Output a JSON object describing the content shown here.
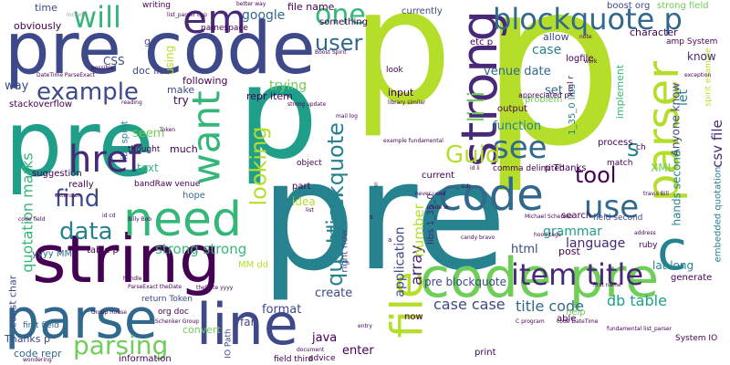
{
  "words": {
    "p_big": "p",
    "p_mid": "p",
    "pre_big": "pre",
    "pre_code_top": "pre code",
    "pre_left": "pre",
    "code_pre": "code pre",
    "string": "string",
    "parse": "parse",
    "line": "line",
    "need": "need",
    "code": "code",
    "strong_v": "strong",
    "parser_v": "parser",
    "file_v": "file",
    "item_title": "item title",
    "blockquote_p": "blockquote p",
    "em": "em",
    "want_v": "want",
    "href": "href",
    "example": "example",
    "will": "will",
    "one": "one",
    "user": "user",
    "see": "see",
    "use": "use",
    "c": "c",
    "guid": "Guid",
    "tool": "tool",
    "s": "s",
    "find": "find",
    "data": "data",
    "parsing": "parsing",
    "question_v": "question",
    "p_blockquote_v": "p blockquote",
    "looking_v": "looking",
    "li_li_v": "li li",
    "strong_strong": "strong strong",
    "google": "google",
    "quotation_marks_v": "quotation marks",
    "grammar": "grammar",
    "language": "language",
    "db_table": "db table",
    "title_code": "title code",
    "case_case": "case case",
    "pre_blockquote": "pre blockquote",
    "html": "html",
    "lat_long": "lat long",
    "array_v": "array",
    "application_v": "application",
    "number_v": "number",
    "xml": "XML",
    "set": "set",
    "venue_date": "venue date",
    "function": "function",
    "know": "know",
    "csv_file_v": "csv file",
    "let_v": "let",
    "case": "case",
    "way": "way",
    "stackoverflow": "stackoverflow",
    "seem": "seem",
    "text": "text",
    "suggestion": "suggestion",
    "really": "really",
    "yyyy_mm": "yyyy MM",
    "bandraw_venue": "bandRaw venue",
    "hope": "hope",
    "table_p": "table p",
    "far": "far",
    "format": "format",
    "create": "create",
    "java": "java",
    "enter": "enter",
    "thanks_p": "Thanks p",
    "code_repr": "code repr",
    "information": "information",
    "convert": "convert",
    "return_token": "return Token",
    "org_doc": "org doc",
    "first_field": "first field",
    "thought": "thought",
    "much": "much",
    "try": "try",
    "make": "make",
    "following": "following",
    "doc_libs": "doc libs",
    "css": "CSS",
    "go": "go",
    "obviously": "obviously",
    "time": "time",
    "file_name": "file name",
    "currently": "currently",
    "something": "something",
    "etc_p": "etc p",
    "allow": "allow",
    "character": "character",
    "amp_system": "amp System",
    "boost_org": "boost org",
    "strong_field": "strong field",
    "trying": "trying",
    "repr_item": "repr item",
    "input": "input",
    "output": "output",
    "problem": "problem",
    "look": "look",
    "idea": "idea",
    "part": "part",
    "current": "current",
    "search": "search",
    "post": "post",
    "now": "now",
    "print": "print",
    "able": "able",
    "help": "help",
    "generate": "generate",
    "process": "process",
    "match": "match",
    "field_second": "field second",
    "p_thanks": "p Thanks",
    "ruby": "ruby",
    "system_io": "System IO",
    "anyone_know_v": "Anyone know",
    "hands_second_v": "hands second",
    "embedded_quotation_v": "embedded quotation",
    "implement_v": "implement",
    "logfile": "logfile",
    "const_char_v": "const char",
    "mm_dd": "MM dd",
    "right_now_v": "right now",
    "libs_1_35_0_v": "libs 1_35_0",
    "libs_spirit_v": "libs spirit",
    "using_v": "using",
    "comma_delimited": "comma delimited",
    "appreciated_p": "appreciated p",
    "libs_1_35_0_b_v": "1_35_0 libs",
    "namespace": "namespace",
    "writing": "writing",
    "field_third": "field third",
    "advice": "advice",
    "io_path_v": "IO Path",
    "object": "object",
    "ch": "ch",
    "xmlr_v": "xml r",
    "spirit_example_v": "spirit example",
    "include": "include",
    "list_parser_cpp": "list_parser cpp",
    "datetime_parseexact": "DateTime ParseExact",
    "group_house": "Group House",
    "thedate_yyyy": "theDate yyyy",
    "parseexact_thedate": "ParseExact theDate",
    "wondering": "wondering",
    "schenker_group": "Schenker Group",
    "michael_schenker": "Michael Schenker",
    "never_used": "never used",
    "example_fundamental": "example fundamental",
    "library_similar": "library similar",
    "code_field": "code field",
    "extension": "extension",
    "possible": "possible",
    "handle": "handle",
    "document": "document",
    "entry": "entry",
    "reading": "reading",
    "billy_bob": "Billy Bob",
    "token": "Token",
    "strong_update": "strong update",
    "mail_log": "mail log",
    "address": "address",
    "code_datetime": "code DateTime",
    "fundamental_list_parser": "fundamental list_parser",
    "c_program": "C program",
    "candy_bravo": "candy bravo",
    "first_name": "first name",
    "better_way": "better way",
    "boost_spirit": "Boost Spirit",
    "work": "work",
    "exception": "exception",
    "note": "note",
    "sub": "sub",
    "id_li": "id li",
    "travis_bill": "travis Bill",
    "hood_tags": "hood tags",
    "list": "list",
    "code_w": "code w",
    "id_cd": "id cd",
    "s_small": "s",
    "li_small": "li",
    "a_small": "a"
  },
  "colors": {
    "dark_purple": "#440154",
    "indigo": "#482878",
    "blue": "#3e4989",
    "steel": "#31688e",
    "teal": "#26828e",
    "green_teal": "#1f9e89",
    "green": "#35b779",
    "light_green": "#6ece58",
    "lime": "#b5de2b",
    "yellow": "#fde725",
    "grey": "#9a9a9a"
  }
}
